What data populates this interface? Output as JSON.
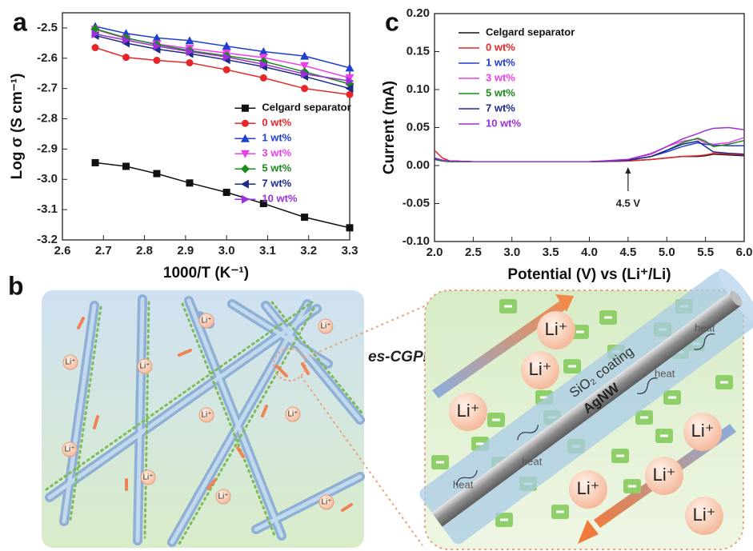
{
  "chart_data": [
    {
      "type": "line",
      "panel_label": "a",
      "x_label": "1000/T (K⁻¹)",
      "y_label": "Log σ (S cm⁻¹)",
      "x": [
        2.68,
        2.755,
        2.83,
        2.91,
        3.0,
        3.09,
        3.19,
        3.3
      ],
      "xlim": [
        2.6,
        3.3
      ],
      "xticks": [
        2.6,
        2.7,
        2.8,
        2.9,
        {
          "value": 3,
          "label": "3.0"
        },
        3.1,
        3.2,
        3.3
      ],
      "ylim": [
        -3.2,
        -2.45
      ],
      "yticks": [
        -2.5,
        -2.6,
        -2.7,
        -2.8,
        -2.9,
        {
          "value": -3,
          "label": "-3.0"
        },
        -3.1,
        -3.2
      ],
      "legend": "right",
      "series": [
        {
          "name": "Celgard separator",
          "color": "#111111",
          "marker": "square",
          "values": [
            -2.945,
            -2.957,
            -2.981,
            -3.012,
            -3.043,
            -3.08,
            -3.125,
            -3.16
          ]
        },
        {
          "name": "0 wt%",
          "color": "#e8262a",
          "marker": "circle",
          "values": [
            -2.565,
            -2.597,
            -2.607,
            -2.615,
            -2.638,
            -2.665,
            -2.7,
            -2.72
          ]
        },
        {
          "name": "1 wt%",
          "color": "#1f3fd1",
          "marker": "triangle-up",
          "values": [
            -2.495,
            -2.518,
            -2.533,
            -2.542,
            -2.56,
            -2.578,
            -2.593,
            -2.632
          ]
        },
        {
          "name": "3 wt%",
          "color": "#ee3ee8",
          "marker": "triangle-down",
          "values": [
            -2.505,
            -2.535,
            -2.553,
            -2.568,
            -2.583,
            -2.598,
            -2.625,
            -2.665
          ]
        },
        {
          "name": "5 wt%",
          "color": "#1a8a1a",
          "marker": "diamond",
          "values": [
            -2.503,
            -2.533,
            -2.555,
            -2.575,
            -2.592,
            -2.61,
            -2.645,
            -2.685
          ]
        },
        {
          "name": "7 wt%",
          "color": "#1c2b8a",
          "marker": "triangle-left",
          "values": [
            -2.525,
            -2.55,
            -2.57,
            -2.585,
            -2.605,
            -2.628,
            -2.66,
            -2.7
          ]
        },
        {
          "name": "10 wt%",
          "color": "#9b30d9",
          "marker": "triangle-right",
          "values": [
            -2.52,
            -2.54,
            -2.56,
            -2.578,
            -2.596,
            -2.62,
            -2.652,
            -2.675
          ]
        }
      ]
    },
    {
      "type": "line",
      "panel_label": "c",
      "x_label": "Potential (V) vs (Li⁺/Li)",
      "y_label": "Current (mA)",
      "x": [
        2.0,
        2.1,
        2.2,
        2.5,
        3.0,
        3.5,
        4.0,
        4.5,
        4.8,
        5.0,
        5.2,
        5.4,
        5.5,
        5.6,
        5.8,
        6.0
      ],
      "xlim": [
        2,
        6
      ],
      "xticks": [
        {
          "value": 2,
          "label": "2.0"
        },
        2.5,
        {
          "value": 3,
          "label": "3.0"
        },
        3.5,
        {
          "value": 4,
          "label": "4.0"
        },
        4.5,
        {
          "value": 5,
          "label": "5.0"
        },
        5.5,
        {
          "value": 6,
          "label": "6.0"
        }
      ],
      "ylim": [
        -0.1,
        0.2
      ],
      "yticks": [
        {
          "value": 0.2,
          "label": "0.20"
        },
        0.15,
        {
          "value": 0.1,
          "label": "0.10"
        },
        0.05,
        {
          "value": 0,
          "label": "0.00"
        },
        -0.05,
        {
          "value": -0.1,
          "label": "-0.10"
        }
      ],
      "legend": "upper left",
      "annotation": {
        "text": "4.5 V",
        "x": 4.5
      },
      "series": [
        {
          "name": "Celgard separator",
          "color": "#111111",
          "values": [
            0.01,
            0.007,
            0.006,
            0.005,
            0.005,
            0.005,
            0.005,
            0.006,
            0.008,
            0.01,
            0.012,
            0.012,
            0.013,
            0.015,
            0.014,
            0.013
          ]
        },
        {
          "name": "0 wt%",
          "color": "#e8262a",
          "values": [
            0.02,
            0.01,
            0.006,
            0.005,
            0.005,
            0.005,
            0.005,
            0.006,
            0.008,
            0.01,
            0.012,
            0.013,
            0.014,
            0.016,
            0.015,
            0.014
          ]
        },
        {
          "name": "1 wt%",
          "color": "#1f3fd1",
          "values": [
            0.008,
            0.006,
            0.005,
            0.005,
            0.005,
            0.005,
            0.005,
            0.007,
            0.012,
            0.018,
            0.025,
            0.03,
            0.028,
            0.027,
            0.026,
            0.026
          ]
        },
        {
          "name": "3 wt%",
          "color": "#ee3ee8",
          "values": [
            0.008,
            0.006,
            0.005,
            0.005,
            0.005,
            0.005,
            0.005,
            0.008,
            0.015,
            0.025,
            0.032,
            0.035,
            0.03,
            0.028,
            0.03,
            0.037
          ]
        },
        {
          "name": "5 wt%",
          "color": "#1a8a1a",
          "values": [
            0.008,
            0.006,
            0.005,
            0.005,
            0.005,
            0.005,
            0.005,
            0.007,
            0.012,
            0.02,
            0.03,
            0.036,
            0.032,
            0.025,
            0.028,
            0.033
          ]
        },
        {
          "name": "7 wt%",
          "color": "#1c2b8a",
          "values": [
            0.009,
            0.007,
            0.006,
            0.005,
            0.005,
            0.005,
            0.005,
            0.007,
            0.012,
            0.02,
            0.028,
            0.032,
            0.025,
            0.018,
            0.016,
            0.015
          ]
        },
        {
          "name": "10 wt%",
          "color": "#9b30d9",
          "values": [
            0.01,
            0.007,
            0.006,
            0.005,
            0.005,
            0.005,
            0.005,
            0.008,
            0.016,
            0.025,
            0.035,
            0.042,
            0.046,
            0.049,
            0.05,
            0.047
          ]
        }
      ]
    }
  ],
  "illustration": {
    "panel_label": "b",
    "title": "es-CGPEs",
    "ion": "Li⁺",
    "coating": "SiO₂ coating",
    "core": "AgNW",
    "heat": "heat"
  }
}
